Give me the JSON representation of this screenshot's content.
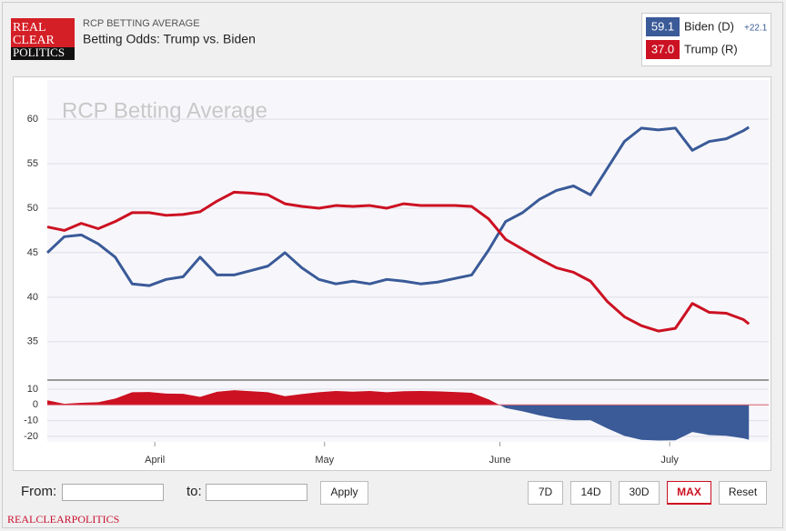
{
  "logo": [
    "REAL",
    "CLEAR",
    "POLITICS"
  ],
  "header": {
    "subtitle": "RCP BETTING AVERAGE",
    "title": "Betting Odds: Trump vs. Biden"
  },
  "chart_data": [
    {
      "type": "line",
      "watermark": "RCP Betting Average",
      "x": [
        0,
        3,
        6,
        9,
        12,
        15,
        18,
        21,
        24,
        27,
        30,
        33,
        36,
        39,
        42,
        45,
        48,
        51,
        54,
        57,
        60,
        63,
        66,
        69,
        72,
        75,
        78,
        81,
        84,
        87,
        90,
        93,
        96,
        99,
        102,
        105,
        108,
        111,
        114,
        117,
        120,
        123,
        124
      ],
      "xlim": [
        0,
        127.5
      ],
      "ylim": [
        31,
        64.4
      ],
      "yticks": [
        35,
        40,
        45,
        50,
        55,
        60
      ],
      "grid": true,
      "series": [
        {
          "name": "Biden (D)",
          "color": "#3a5a98",
          "latest": "59.1",
          "lead": "+22.1",
          "values": [
            45,
            46.8,
            47,
            46,
            44.5,
            41.5,
            41.3,
            42,
            42.3,
            44.5,
            42.5,
            42.5,
            43,
            43.5,
            45,
            43.3,
            42,
            41.5,
            41.8,
            41.5,
            42,
            41.8,
            41.5,
            41.7,
            42.1,
            42.5,
            45.3,
            48.5,
            49.5,
            51,
            52,
            52.5,
            51.5,
            54.5,
            57.5,
            59,
            58.8,
            59,
            56.5,
            57.5,
            57.8,
            58.7,
            59.1
          ]
        },
        {
          "name": "Trump (R)",
          "color": "#cc1122",
          "latest": "37.0",
          "values": [
            47.9,
            47.5,
            48.3,
            47.7,
            48.5,
            49.5,
            49.5,
            49.2,
            49.3,
            49.6,
            50.8,
            51.8,
            51.7,
            51.5,
            50.5,
            50.2,
            50,
            50.3,
            50.2,
            50.3,
            50,
            50.5,
            50.3,
            50.3,
            50.3,
            50.2,
            48.8,
            46.5,
            45.4,
            44.3,
            43.3,
            42.8,
            41.8,
            39.5,
            37.8,
            36.8,
            36.2,
            36.5,
            39.3,
            38.3,
            38.2,
            37.5,
            37.0
          ]
        }
      ]
    },
    {
      "type": "area",
      "values": [
        2.9,
        0.7,
        1.3,
        1.7,
        4.0,
        8.0,
        8.2,
        7.2,
        7.0,
        5.1,
        8.3,
        9.3,
        8.7,
        8.0,
        5.5,
        6.9,
        8.0,
        8.8,
        8.4,
        8.8,
        8.0,
        8.7,
        8.8,
        8.6,
        8.2,
        7.7,
        3.5,
        -2.0,
        -4.1,
        -6.7,
        -8.7,
        -9.7,
        -9.7,
        -15.0,
        -19.7,
        -22.2,
        -22.6,
        -22.5,
        -17.2,
        -19.2,
        -19.6,
        -21.2,
        -22.1
      ],
      "color_positive": "#cc1122",
      "color_negative": "#3a5a98",
      "ylim": [
        -23.5,
        14.6
      ],
      "yticks": [
        -20,
        -10,
        0,
        10
      ],
      "xticks": [
        {
          "value": 19,
          "label": "April"
        },
        {
          "value": 49,
          "label": "May"
        },
        {
          "value": 80,
          "label": "June"
        },
        {
          "value": 110,
          "label": "July"
        }
      ]
    }
  ],
  "controls": {
    "from": "From:",
    "to": "to:",
    "apply": "Apply",
    "ranges": [
      "7D",
      "14D",
      "30D",
      "MAX",
      "Reset"
    ],
    "active": "MAX"
  },
  "footer": "REALCLEARPOLITICS"
}
